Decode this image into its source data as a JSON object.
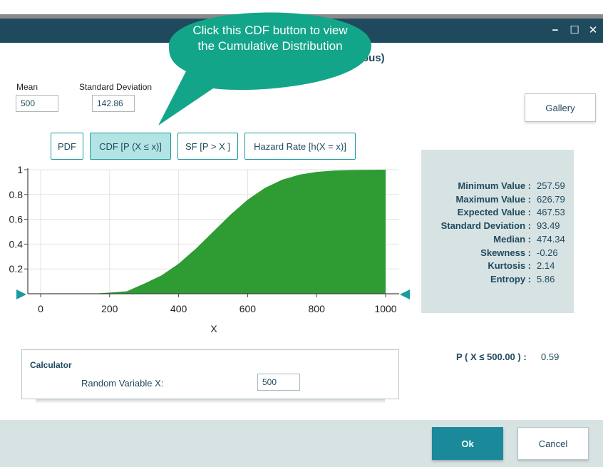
{
  "window": {
    "title_tail": "ous)",
    "controls": {
      "minimize": "−",
      "maximize": "☐",
      "close": "✕"
    }
  },
  "callout": {
    "text": "Click this CDF button to view the Cumulative Distribution",
    "color": "#13a58a"
  },
  "params": {
    "mean_label": "Mean",
    "mean_value": "500",
    "sd_label": "Standard Deviation",
    "sd_value": "142.86"
  },
  "gallery_label": "Gallery",
  "view_buttons": [
    {
      "id": "pdf",
      "label": "PDF",
      "active": false
    },
    {
      "id": "cdf",
      "label": "CDF [P (X ≤ x)]",
      "active": true
    },
    {
      "id": "sf",
      "label": "SF [P > X ]",
      "active": false
    },
    {
      "id": "hazard",
      "label": "Hazard Rate [h(X = x)]",
      "active": false
    }
  ],
  "chart_data": {
    "type": "area",
    "xlabel": "X",
    "ylabel": "",
    "xlim": [
      0,
      1000
    ],
    "ylim": [
      0,
      1
    ],
    "x_ticks": [
      "0",
      "200",
      "400",
      "600",
      "800",
      "1000"
    ],
    "y_ticks": [
      "0.2",
      "0.4",
      "0.6",
      "0.8",
      "1"
    ],
    "grid": true,
    "fill_color": "#2e9b33",
    "marker_color": "#1a9ba0",
    "x": [
      0,
      100,
      200,
      250,
      300,
      350,
      400,
      450,
      500,
      550,
      600,
      650,
      700,
      750,
      800,
      850,
      900,
      950,
      1000
    ],
    "y": [
      0.0002,
      0.0012,
      0.0091,
      0.0202,
      0.0808,
      0.147,
      0.242,
      0.363,
      0.5,
      0.637,
      0.758,
      0.853,
      0.919,
      0.96,
      0.982,
      0.993,
      0.997,
      0.999,
      1.0
    ]
  },
  "stats": [
    {
      "label": "Minimum Value :",
      "value": "257.59"
    },
    {
      "label": "Maximum Value :",
      "value": "626.79"
    },
    {
      "label": "Expected Value :",
      "value": "467.53"
    },
    {
      "label": "Standard Deviation :",
      "value": "93.49"
    },
    {
      "label": "Median :",
      "value": "474.34"
    },
    {
      "label": "Skewness :",
      "value": "-0.26"
    },
    {
      "label": "Kurtosis :",
      "value": "2.14"
    },
    {
      "label": "Entropy :",
      "value": "5.86"
    }
  ],
  "calculator": {
    "title": "Calculator",
    "rv_label": "Random Variable X:",
    "rv_value": "500"
  },
  "probability": {
    "label": "P ( X ≤ 500.00 ) :",
    "value": "0.59"
  },
  "footer": {
    "ok_label": "Ok",
    "cancel_label": "Cancel"
  }
}
